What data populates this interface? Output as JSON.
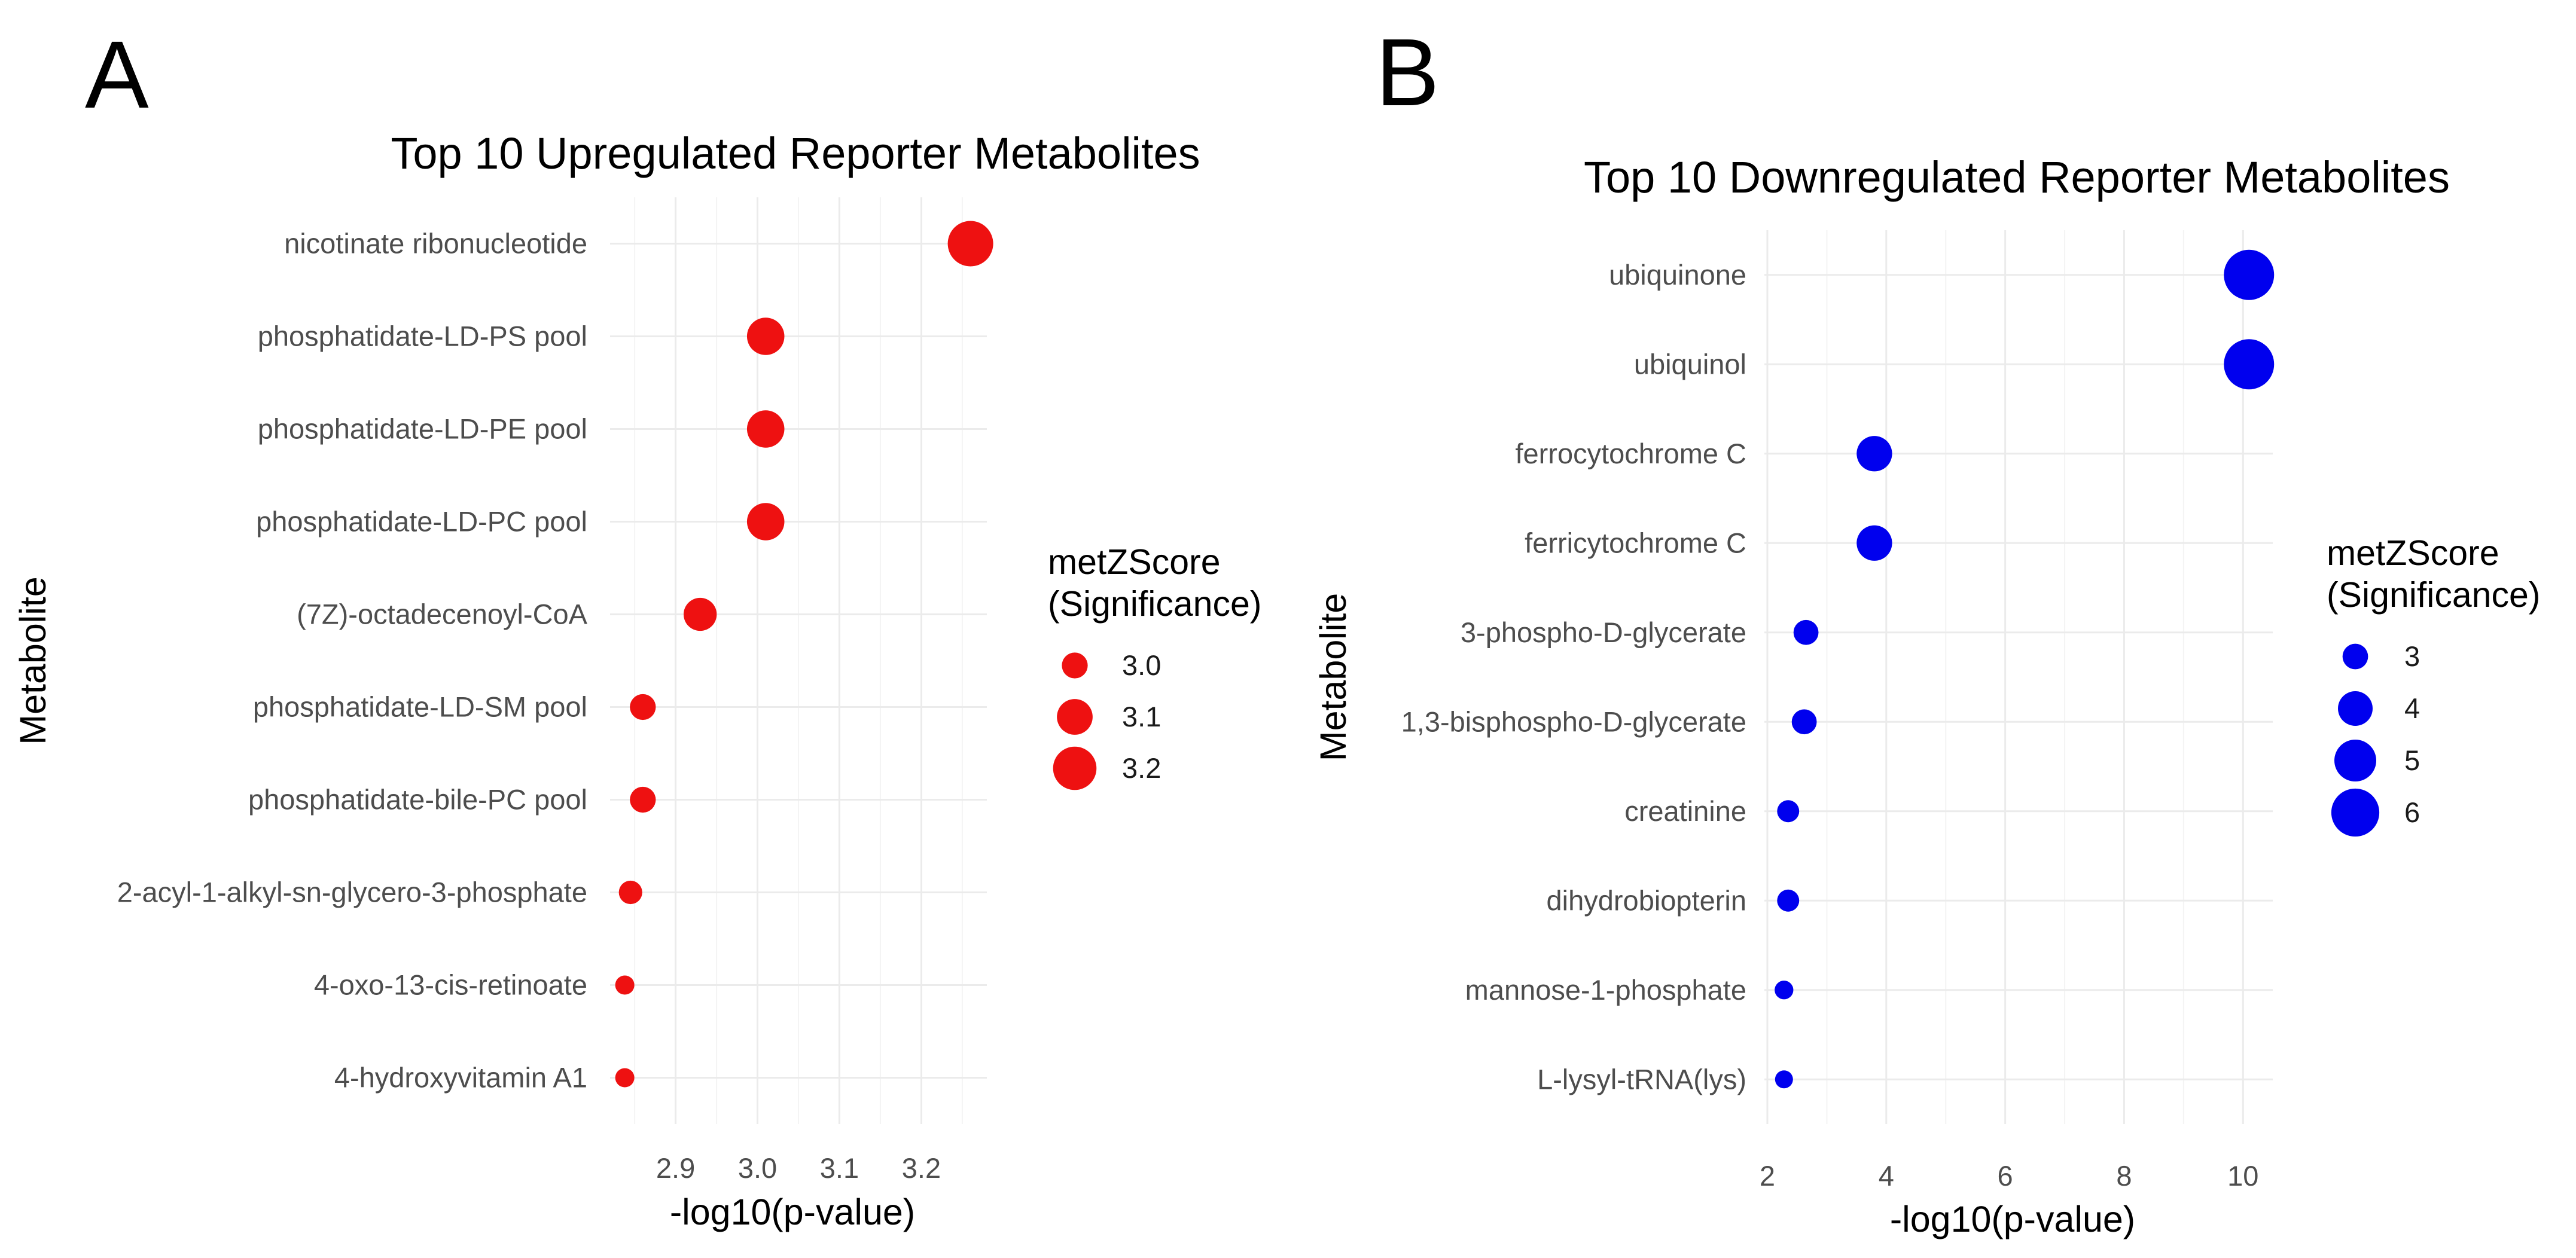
{
  "chart_data": [
    {
      "panel": "A",
      "type": "scatter",
      "title": "Top 10 Upregulated Reporter Metabolites",
      "xlabel": "-log10(p-value)",
      "ylabel": "Metabolite",
      "xlim": [
        2.82,
        3.28
      ],
      "xticks": [
        2.9,
        3.0,
        3.1,
        3.2
      ],
      "xtick_labels": [
        "2.9",
        "3.0",
        "3.1",
        "3.2"
      ],
      "color": "#ee1111",
      "categories": [
        "nicotinate ribonucleotide",
        "phosphatidate-LD-PS pool",
        "phosphatidate-LD-PE pool",
        "phosphatidate-LD-PC pool",
        "(7Z)-octadecenoyl-CoA",
        "phosphatidate-LD-SM pool",
        "phosphatidate-bile-PC pool",
        "2-acyl-1-alkyl-sn-glycero-3-phosphate",
        "4-oxo-13-cis-retinoate",
        "4-hydroxyvitamin A1"
      ],
      "x": [
        3.26,
        3.01,
        3.01,
        3.01,
        2.93,
        2.86,
        2.86,
        2.845,
        2.838,
        2.838
      ],
      "size": [
        3.23,
        3.12,
        3.12,
        3.12,
        3.07,
        3.0,
        3.0,
        2.98,
        2.95,
        2.95
      ],
      "legend": {
        "title_line1": "metZScore",
        "title_line2": "(Significance)",
        "values": [
          3.0,
          3.1,
          3.2
        ],
        "labels": [
          "3.0",
          "3.1",
          "3.2"
        ]
      }
    },
    {
      "panel": "B",
      "type": "scatter",
      "title": "Top 10 Downregulated Reporter Metabolites",
      "xlabel": "-log10(p-value)",
      "ylabel": "Metabolite",
      "xlim": [
        1.95,
        10.5
      ],
      "xticks": [
        2,
        4,
        6,
        8,
        10
      ],
      "xtick_labels": [
        "2",
        "4",
        "6",
        "8",
        "10"
      ],
      "color": "#0000ee",
      "categories": [
        "ubiquinone",
        "ubiquinol",
        "ferrocytochrome C",
        "ferricytochrome C",
        "3-phospho-D-glycerate",
        "1,3-bisphospho-D-glycerate",
        "creatinine",
        "dihydrobiopterin",
        "mannose-1-phosphate",
        "L-lysyl-tRNA(lys)"
      ],
      "x": [
        10.1,
        10.1,
        3.8,
        3.8,
        2.65,
        2.62,
        2.35,
        2.35,
        2.28,
        2.28
      ],
      "size": [
        6.4,
        6.4,
        4.1,
        4.1,
        2.95,
        2.95,
        2.7,
        2.7,
        2.45,
        2.4
      ],
      "legend": {
        "title_line1": "metZScore",
        "title_line2": "(Significance)",
        "values": [
          3,
          4,
          5,
          6
        ],
        "labels": [
          "3",
          "4",
          "5",
          "6"
        ]
      }
    }
  ]
}
